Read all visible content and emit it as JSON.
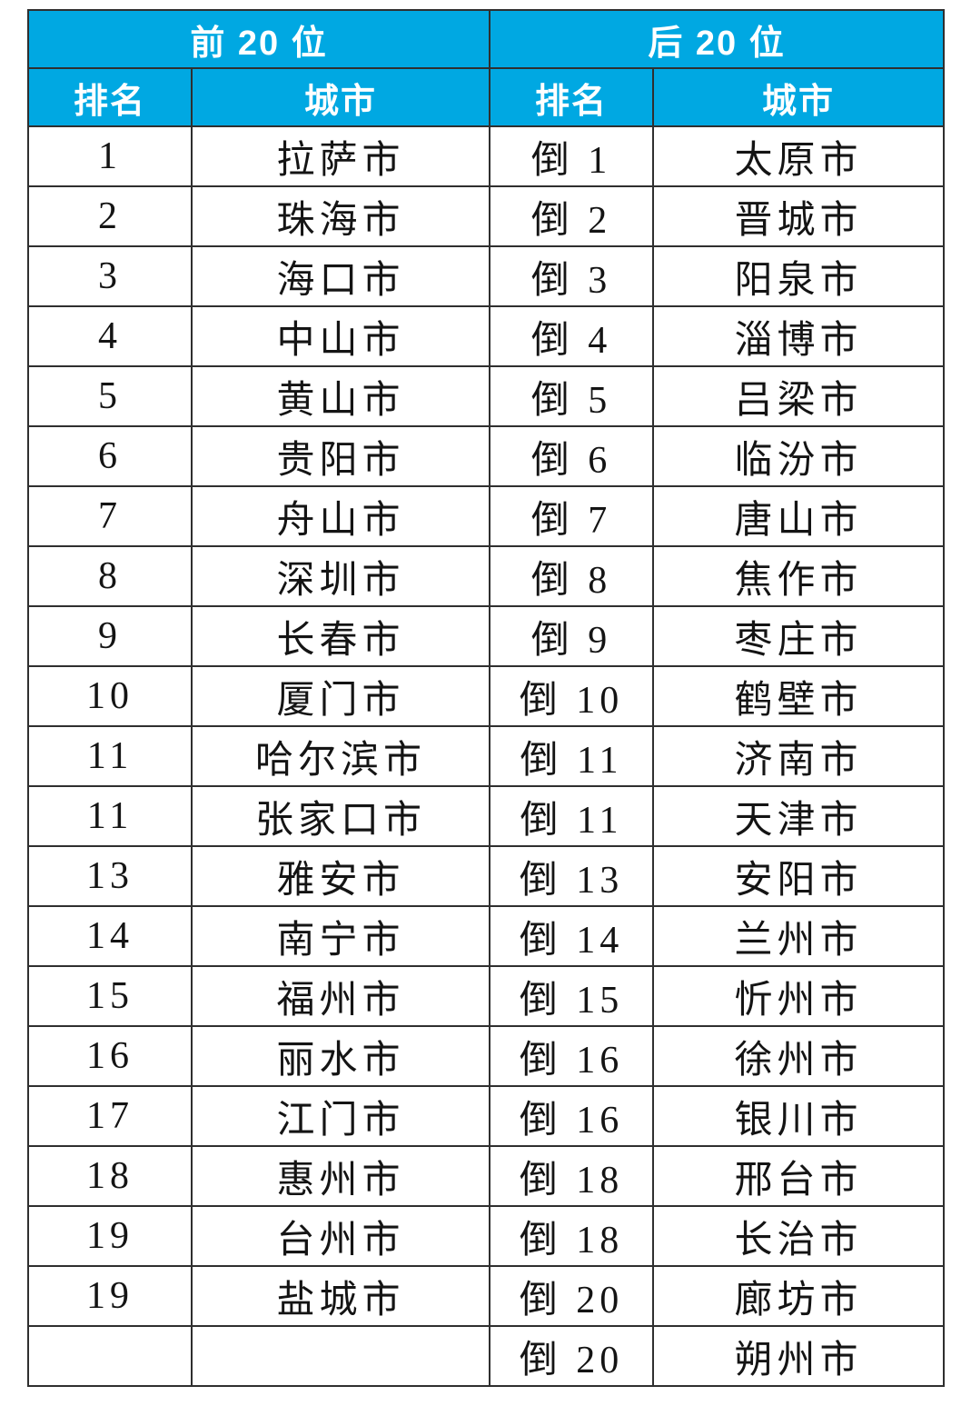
{
  "style": {
    "accent_color": "#00a8e2",
    "border_color": "#2f2f2f",
    "header_text_color": "#ffffff",
    "body_text_color": "#141414",
    "page_background": "#ffffff"
  },
  "chart_data": {
    "type": "table",
    "title": "",
    "groups": [
      {
        "title": "前 20 位",
        "col_headers": [
          "排名",
          "城市"
        ]
      },
      {
        "title": "后 20 位",
        "col_headers": [
          "排名",
          "城市"
        ]
      }
    ],
    "rows": [
      {
        "left_rank": "1",
        "left_city": "拉萨市",
        "right_rank": "倒 1",
        "right_city": "太原市"
      },
      {
        "left_rank": "2",
        "left_city": "珠海市",
        "right_rank": "倒 2",
        "right_city": "晋城市"
      },
      {
        "left_rank": "3",
        "left_city": "海口市",
        "right_rank": "倒 3",
        "right_city": "阳泉市"
      },
      {
        "left_rank": "4",
        "left_city": "中山市",
        "right_rank": "倒 4",
        "right_city": "淄博市"
      },
      {
        "left_rank": "5",
        "left_city": "黄山市",
        "right_rank": "倒 5",
        "right_city": "吕梁市"
      },
      {
        "left_rank": "6",
        "left_city": "贵阳市",
        "right_rank": "倒 6",
        "right_city": "临汾市"
      },
      {
        "left_rank": "7",
        "left_city": "舟山市",
        "right_rank": "倒 7",
        "right_city": "唐山市"
      },
      {
        "left_rank": "8",
        "left_city": "深圳市",
        "right_rank": "倒 8",
        "right_city": "焦作市"
      },
      {
        "left_rank": "9",
        "left_city": "长春市",
        "right_rank": "倒 9",
        "right_city": "枣庄市"
      },
      {
        "left_rank": "10",
        "left_city": "厦门市",
        "right_rank": "倒 10",
        "right_city": "鹤壁市"
      },
      {
        "left_rank": "11",
        "left_city": "哈尔滨市",
        "right_rank": "倒 11",
        "right_city": "济南市"
      },
      {
        "left_rank": "11",
        "left_city": "张家口市",
        "right_rank": "倒 11",
        "right_city": "天津市"
      },
      {
        "left_rank": "13",
        "left_city": "雅安市",
        "right_rank": "倒 13",
        "right_city": "安阳市"
      },
      {
        "left_rank": "14",
        "left_city": "南宁市",
        "right_rank": "倒 14",
        "right_city": "兰州市"
      },
      {
        "left_rank": "15",
        "left_city": "福州市",
        "right_rank": "倒 15",
        "right_city": "忻州市"
      },
      {
        "left_rank": "16",
        "left_city": "丽水市",
        "right_rank": "倒 16",
        "right_city": "徐州市"
      },
      {
        "left_rank": "17",
        "left_city": "江门市",
        "right_rank": "倒 16",
        "right_city": "银川市"
      },
      {
        "left_rank": "18",
        "left_city": "惠州市",
        "right_rank": "倒 18",
        "right_city": "邢台市"
      },
      {
        "left_rank": "19",
        "left_city": "台州市",
        "right_rank": "倒 18",
        "right_city": "长治市"
      },
      {
        "left_rank": "19",
        "left_city": "盐城市",
        "right_rank": "倒 20",
        "right_city": "廊坊市"
      },
      {
        "left_rank": "",
        "left_city": "",
        "right_rank": "倒 20",
        "right_city": "朔州市"
      }
    ]
  }
}
